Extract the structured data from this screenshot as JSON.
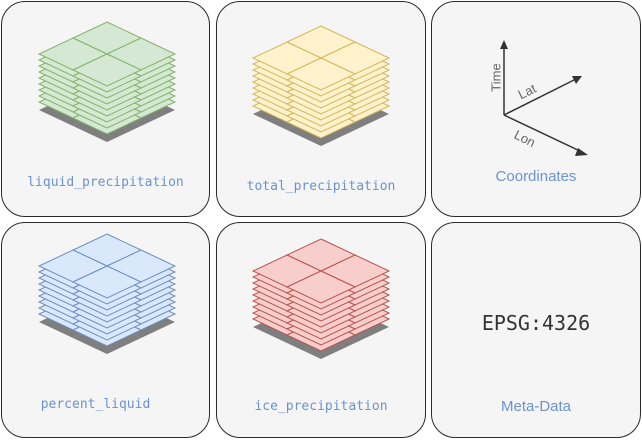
{
  "panels": [
    {
      "id": "liquid",
      "label": "liquid_precipitation",
      "fill": "#d5e8d4",
      "stroke": "#82b366"
    },
    {
      "id": "total",
      "label": "total_precipitation",
      "fill": "#fff2cc",
      "stroke": "#d6b656"
    },
    {
      "id": "percent",
      "label": "percent_liquid",
      "fill": "#dae8fc",
      "stroke": "#6c8ebf"
    },
    {
      "id": "ice",
      "label": "ice_precipitation",
      "fill": "#f8cecc",
      "stroke": "#b85450"
    }
  ],
  "coordinates": {
    "title": "Coordinates",
    "axes": {
      "vertical": "Time",
      "diagonal_up": "Lat",
      "diagonal_down": "Lon"
    }
  },
  "metadata": {
    "title": "Meta-Data",
    "crs": "EPSG:4326"
  },
  "colors": {
    "label_blue": "#6b93cf",
    "shadow": "#7f7f7f",
    "card_bg": "#f5f5f5"
  }
}
